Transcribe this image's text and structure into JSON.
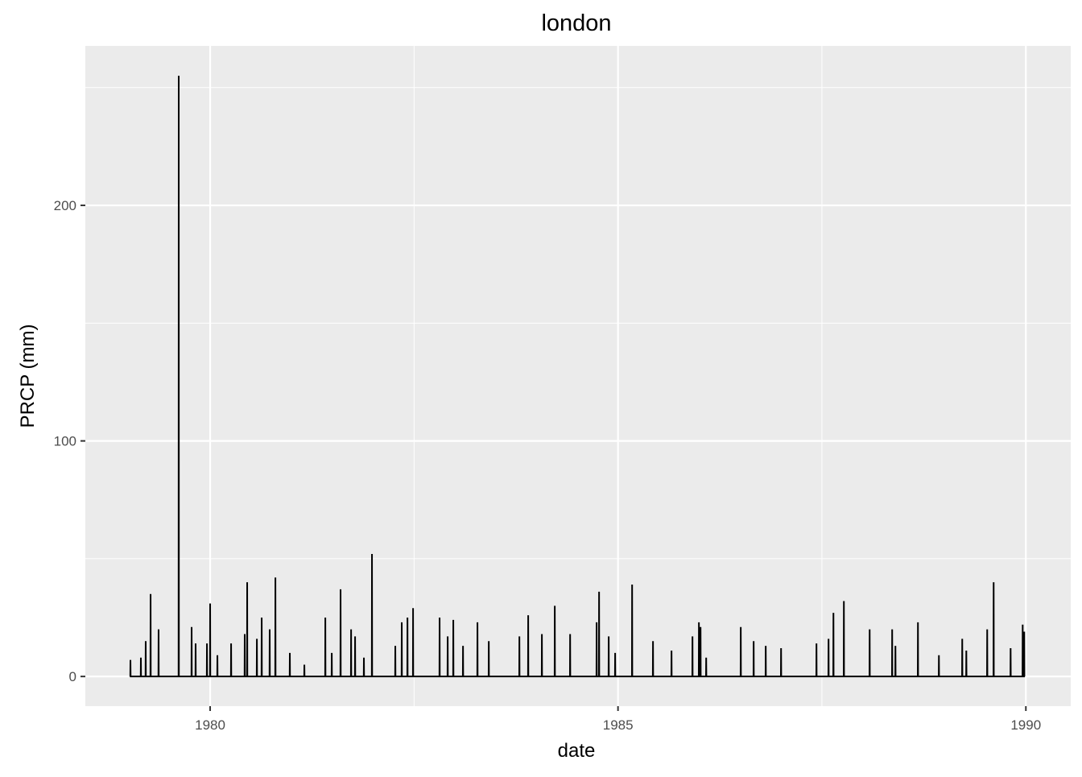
{
  "chart_data": {
    "type": "line",
    "title": "london",
    "x_label": "date",
    "y_label": "PRCP (mm)",
    "x": [
      1979.021,
      1979.023,
      1979.025,
      1979.149,
      1979.151,
      1979.153,
      1979.208,
      1979.21,
      1979.212,
      1979.268,
      1979.27,
      1979.272,
      1979.366,
      1979.368,
      1979.37,
      1979.613,
      1979.615,
      1979.617,
      1979.771,
      1979.773,
      1979.775,
      1979.82,
      1979.822,
      1979.824,
      1979.959,
      1979.961,
      1979.963,
      1979.998,
      1980.0,
      1980.002,
      1980.087,
      1980.089,
      1980.091,
      1980.255,
      1980.257,
      1980.259,
      1980.422,
      1980.424,
      1980.426,
      1980.452,
      1980.454,
      1980.456,
      1980.571,
      1980.573,
      1980.575,
      1980.63,
      1980.632,
      1980.634,
      1980.728,
      1980.73,
      1980.732,
      1980.798,
      1980.8,
      1980.802,
      1980.975,
      1980.977,
      1980.979,
      1981.153,
      1981.155,
      1981.157,
      1981.41,
      1981.412,
      1981.414,
      1981.489,
      1981.491,
      1981.493,
      1981.597,
      1981.599,
      1981.601,
      1981.726,
      1981.728,
      1981.73,
      1981.775,
      1981.777,
      1981.779,
      1981.883,
      1981.885,
      1981.887,
      1981.982,
      1981.984,
      1981.986,
      1982.268,
      1982.27,
      1982.272,
      1982.347,
      1982.349,
      1982.351,
      1982.417,
      1982.419,
      1982.421,
      1982.486,
      1982.488,
      1982.49,
      1982.811,
      1982.813,
      1982.815,
      1982.91,
      1982.912,
      1982.914,
      1982.979,
      1982.981,
      1982.983,
      1983.098,
      1983.1,
      1983.102,
      1983.275,
      1983.277,
      1983.279,
      1983.414,
      1983.416,
      1983.418,
      1983.789,
      1983.791,
      1983.793,
      1983.897,
      1983.899,
      1983.901,
      1984.065,
      1984.067,
      1984.069,
      1984.223,
      1984.225,
      1984.227,
      1984.411,
      1984.413,
      1984.415,
      1984.736,
      1984.738,
      1984.74,
      1984.766,
      1984.768,
      1984.77,
      1984.884,
      1984.886,
      1984.888,
      1984.963,
      1984.965,
      1984.967,
      1985.171,
      1985.173,
      1985.175,
      1985.427,
      1985.429,
      1985.431,
      1985.654,
      1985.656,
      1985.658,
      1985.911,
      1985.913,
      1985.915,
      1985.99,
      1985.992,
      1985.994,
      1986.01,
      1986.012,
      1986.014,
      1986.079,
      1986.081,
      1986.083,
      1986.503,
      1986.505,
      1986.507,
      1986.661,
      1986.663,
      1986.665,
      1986.809,
      1986.811,
      1986.813,
      1986.997,
      1986.999,
      1987.001,
      1987.431,
      1987.433,
      1987.435,
      1987.579,
      1987.581,
      1987.583,
      1987.639,
      1987.641,
      1987.643,
      1987.767,
      1987.769,
      1987.771,
      1988.083,
      1988.085,
      1988.087,
      1988.359,
      1988.361,
      1988.363,
      1988.399,
      1988.401,
      1988.403,
      1988.675,
      1988.677,
      1988.679,
      1988.932,
      1988.934,
      1988.936,
      1989.218,
      1989.22,
      1989.222,
      1989.268,
      1989.27,
      1989.272,
      1989.524,
      1989.526,
      1989.528,
      1989.603,
      1989.605,
      1989.607,
      1989.811,
      1989.813,
      1989.815,
      1989.959,
      1989.961,
      1989.963,
      1989.978,
      1989.98,
      1989.982
    ],
    "values": [
      0,
      7,
      0,
      0,
      8,
      0,
      0,
      15,
      0,
      0,
      35,
      0,
      0,
      20,
      0,
      0,
      255,
      0,
      0,
      21,
      0,
      0,
      14,
      0,
      0,
      14,
      0,
      0,
      31,
      0,
      0,
      9,
      0,
      0,
      14,
      0,
      0,
      18,
      0,
      0,
      40,
      0,
      0,
      16,
      0,
      0,
      25,
      0,
      0,
      20,
      0,
      0,
      42,
      0,
      0,
      10,
      0,
      0,
      5,
      0,
      0,
      25,
      0,
      0,
      10,
      0,
      0,
      37,
      0,
      0,
      20,
      0,
      0,
      17,
      0,
      0,
      8,
      0,
      0,
      52,
      0,
      0,
      13,
      0,
      0,
      23,
      0,
      0,
      25,
      0,
      0,
      29,
      0,
      0,
      25,
      0,
      0,
      17,
      0,
      0,
      24,
      0,
      0,
      13,
      0,
      0,
      23,
      0,
      0,
      15,
      0,
      0,
      17,
      0,
      0,
      26,
      0,
      0,
      18,
      0,
      0,
      30,
      0,
      0,
      18,
      0,
      0,
      23,
      0,
      0,
      36,
      0,
      0,
      17,
      0,
      0,
      10,
      0,
      0,
      39,
      0,
      0,
      15,
      0,
      0,
      11,
      0,
      0,
      17,
      0,
      0,
      23,
      0,
      0,
      21,
      0,
      0,
      8,
      0,
      0,
      21,
      0,
      0,
      15,
      0,
      0,
      13,
      0,
      0,
      12,
      0,
      0,
      14,
      0,
      0,
      16,
      0,
      0,
      27,
      0,
      0,
      32,
      0,
      0,
      20,
      0,
      0,
      20,
      0,
      0,
      13,
      0,
      0,
      23,
      0,
      0,
      9,
      0,
      0,
      16,
      0,
      0,
      11,
      0,
      0,
      20,
      0,
      0,
      40,
      0,
      0,
      12,
      0,
      0,
      22,
      0,
      0,
      19,
      0
    ],
    "color": "#000000",
    "xlim": [
      1978.47,
      1990.55
    ],
    "xticks": [
      1980,
      1985,
      1990
    ],
    "xminor": [
      1982.5,
      1987.5
    ],
    "ylim": [
      -12.6,
      267.7
    ],
    "yticks": [
      0,
      100,
      200
    ],
    "yminor": [
      50,
      150,
      250
    ],
    "grid": true
  }
}
